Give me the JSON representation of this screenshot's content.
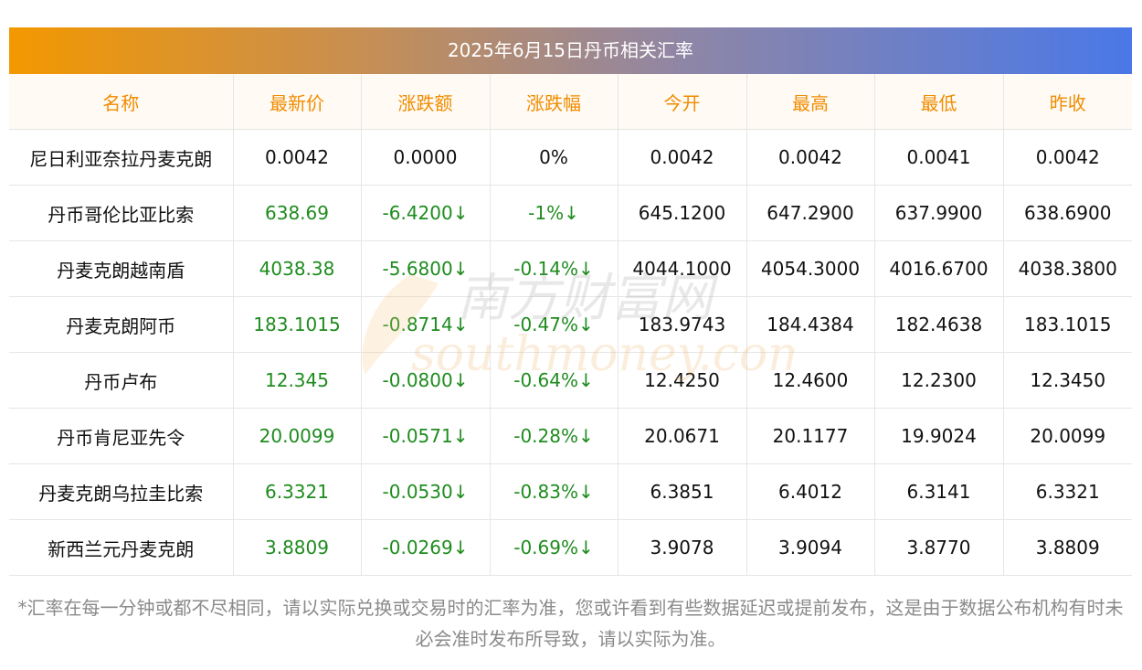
{
  "title": "2025年6月15日丹币相关汇率",
  "headers": [
    "名称",
    "最新价",
    "涨跌额",
    "涨跌幅",
    "今开",
    "最高",
    "最低",
    "昨收"
  ],
  "rows": [
    {
      "name": "尼日利亚奈拉丹麦克朗",
      "latest": "0.0042",
      "change": "0.0000",
      "pct": "0%",
      "open": "0.0042",
      "high": "0.0042",
      "low": "0.0041",
      "prev": "0.0042",
      "trend": "flat"
    },
    {
      "name": "丹币哥伦比亚比索",
      "latest": "638.69",
      "change": "-6.4200↓",
      "pct": "-1%↓",
      "open": "645.1200",
      "high": "647.2900",
      "low": "637.9900",
      "prev": "638.6900",
      "trend": "down"
    },
    {
      "name": "丹麦克朗越南盾",
      "latest": "4038.38",
      "change": "-5.6800↓",
      "pct": "-0.14%↓",
      "open": "4044.1000",
      "high": "4054.3000",
      "low": "4016.6700",
      "prev": "4038.3800",
      "trend": "down"
    },
    {
      "name": "丹麦克朗阿币",
      "latest": "183.1015",
      "change": "-0.8714↓",
      "pct": "-0.47%↓",
      "open": "183.9743",
      "high": "184.4384",
      "low": "182.4638",
      "prev": "183.1015",
      "trend": "down"
    },
    {
      "name": "丹币卢布",
      "latest": "12.345",
      "change": "-0.0800↓",
      "pct": "-0.64%↓",
      "open": "12.4250",
      "high": "12.4600",
      "low": "12.2300",
      "prev": "12.3450",
      "trend": "down"
    },
    {
      "name": "丹币肯尼亚先令",
      "latest": "20.0099",
      "change": "-0.0571↓",
      "pct": "-0.28%↓",
      "open": "20.0671",
      "high": "20.1177",
      "low": "19.9024",
      "prev": "20.0099",
      "trend": "down"
    },
    {
      "name": "丹麦克朗乌拉圭比索",
      "latest": "6.3321",
      "change": "-0.0530↓",
      "pct": "-0.83%↓",
      "open": "6.3851",
      "high": "6.4012",
      "low": "6.3141",
      "prev": "6.3321",
      "trend": "down"
    },
    {
      "name": "新西兰元丹麦克朗",
      "latest": "3.8809",
      "change": "-0.0269↓",
      "pct": "-0.69%↓",
      "open": "3.9078",
      "high": "3.9094",
      "low": "3.8770",
      "prev": "3.8809",
      "trend": "down"
    }
  ],
  "watermark": {
    "cn": "南方财富网",
    "en": "southmoney.com"
  },
  "footnote": "*汇率在每一分钟或都不尽相同，请以实际兑换或交易时的汇率为准，您或许看到有些数据延迟或提前发布，这是由于数据公布机构有时未必会准时发布所导致，请以实际为准。",
  "colors": {
    "header_text": "#f08c00",
    "down": "#1e8c1e",
    "title_start": "#f39800",
    "title_end": "#4a78e8"
  }
}
